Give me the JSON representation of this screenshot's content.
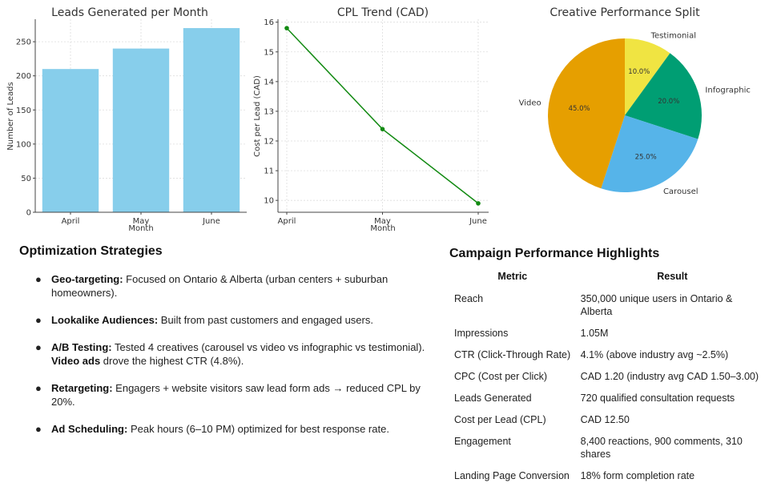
{
  "chart_data": [
    {
      "type": "bar",
      "title": "Leads Generated per Month",
      "xlabel": "Month",
      "ylabel": "Number of Leads",
      "categories": [
        "April",
        "May",
        "June"
      ],
      "values": [
        210,
        240,
        270
      ],
      "ylim": [
        0,
        283
      ],
      "yticks": [
        0,
        50,
        100,
        150,
        200,
        250
      ],
      "grid": true,
      "color": "#87CEEB"
    },
    {
      "type": "line",
      "title": "CPL Trend (CAD)",
      "xlabel": "Month",
      "ylabel": "Cost per Lead (CAD)",
      "categories": [
        "April",
        "May",
        "June"
      ],
      "values": [
        15.8,
        12.4,
        9.9
      ],
      "ylim": [
        9.6,
        16.1
      ],
      "yticks": [
        10,
        11,
        12,
        13,
        14,
        15,
        16
      ],
      "grid": true,
      "marker": "circle",
      "color": "#128a12"
    },
    {
      "type": "pie",
      "title": "Creative Performance Split",
      "start_angle_deg": 90,
      "direction": "clockwise",
      "slices": [
        {
          "label": "Testimonial",
          "value": 10.0,
          "pct_label": "10.0%",
          "color": "#F0E442"
        },
        {
          "label": "Infographic",
          "value": 20.0,
          "pct_label": "20.0%",
          "color": "#009E73"
        },
        {
          "label": "Carousel",
          "value": 25.0,
          "pct_label": "25.0%",
          "color": "#56B4E9"
        },
        {
          "label": "Video",
          "value": 45.0,
          "pct_label": "45.0%",
          "color": "#E69F00"
        }
      ]
    }
  ],
  "optimization": {
    "title": "Optimization Strategies",
    "bullet": "●",
    "items": [
      {
        "bold": "Geo-targeting:",
        "text": " Focused on Ontario & Alberta (urban centers + suburban homeowners).",
        "bold2": "",
        "text2": ""
      },
      {
        "bold": "Lookalike Audiences:",
        "text": " Built from past customers and engaged users.",
        "bold2": "",
        "text2": ""
      },
      {
        "bold": "A/B Testing:",
        "text": " Tested 4 creatives (carousel vs video vs infographic vs testimonial). ",
        "bold2": "Video ads",
        "text2": " drove the highest CTR (4.8%)."
      },
      {
        "bold": "Retargeting:",
        "text": " Engagers + website visitors saw lead form ads → reduced CPL by 20%.",
        "bold2": "",
        "text2": ""
      },
      {
        "bold": "Ad Scheduling:",
        "text": " Peak hours (6–10 PM) optimized for best response rate.",
        "bold2": "",
        "text2": ""
      }
    ]
  },
  "performance": {
    "title": "Campaign Performance Highlights",
    "headers": {
      "metric": "Metric",
      "result": "Result"
    },
    "rows": [
      {
        "metric": "Reach",
        "result": "350,000 unique users in Ontario & Alberta"
      },
      {
        "metric": "Impressions",
        "result": "1.05M"
      },
      {
        "metric": "CTR (Click-Through Rate)",
        "result": "4.1% (above industry avg ~2.5%)"
      },
      {
        "metric": "CPC (Cost per Click)",
        "result": "CAD 1.20 (industry avg CAD 1.50–3.00)"
      },
      {
        "metric": "Leads Generated",
        "result": "720 qualified consultation requests"
      },
      {
        "metric": "Cost per Lead (CPL)",
        "result": "CAD 12.50"
      },
      {
        "metric": "Engagement",
        "result": "8,400 reactions, 900 comments, 310 shares"
      },
      {
        "metric": "Landing Page Conversion",
        "result": "18% form completion rate"
      }
    ]
  }
}
